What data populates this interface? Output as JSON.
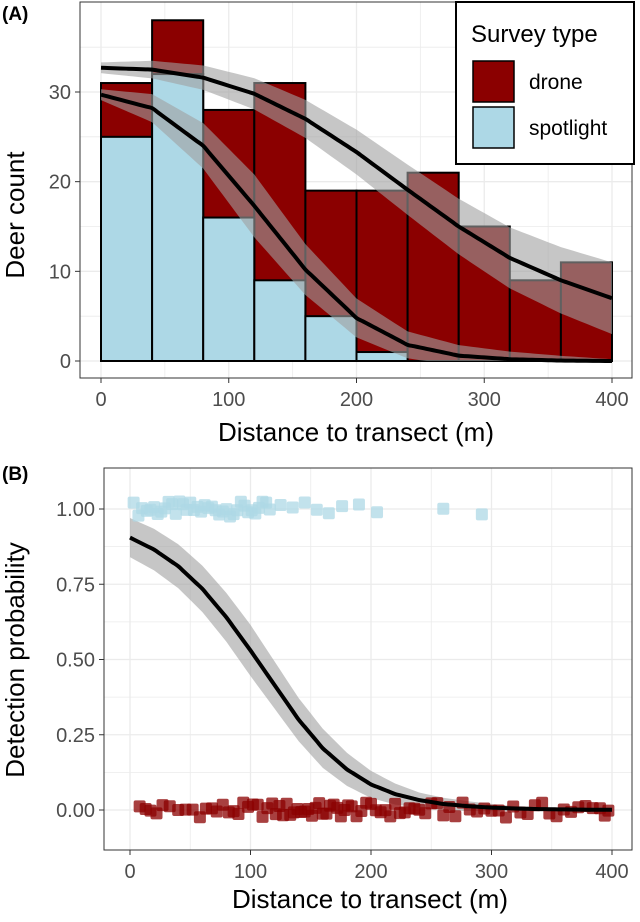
{
  "chart_data": [
    {
      "panel_label": "(A)",
      "type": "bar",
      "subtype": "overlaid histogram with fitted curves",
      "xlabel": "Distance to transect (m)",
      "ylabel": "Deer count",
      "xlim": [
        0,
        400
      ],
      "ylim": [
        0,
        38
      ],
      "xticks": [
        "0",
        "100",
        "200",
        "300",
        "400"
      ],
      "yticks": [
        "0",
        "10",
        "20",
        "30"
      ],
      "bin_edges": [
        0,
        40,
        80,
        120,
        160,
        200,
        240,
        280,
        320,
        360,
        400
      ],
      "legend": {
        "title": "Survey type",
        "position": "top-right",
        "entries": [
          "drone",
          "spotlight"
        ]
      },
      "series": [
        {
          "name": "drone",
          "color": "#8b0000",
          "values": [
            31,
            38,
            28,
            31,
            19,
            19,
            21,
            15,
            9,
            11
          ],
          "tops_visible_above_spotlight": [
            true,
            true,
            true,
            true,
            true,
            true,
            false,
            false,
            false,
            false
          ]
        },
        {
          "name": "spotlight",
          "color": "#add8e6",
          "values": [
            25,
            32,
            16,
            9,
            5,
            1,
            0,
            0,
            0,
            0
          ]
        }
      ],
      "fits": [
        {
          "series": "drone",
          "points": [
            [
              0,
              32.7
            ],
            [
              40,
              32.5
            ],
            [
              80,
              31.6
            ],
            [
              120,
              29.8
            ],
            [
              160,
              27
            ],
            [
              200,
              23.3
            ],
            [
              240,
              19.1
            ],
            [
              280,
              15
            ],
            [
              320,
              11.5
            ],
            [
              360,
              9
            ],
            [
              400,
              7
            ]
          ],
          "band_half_width": [
            [
              0,
              0.6
            ],
            [
              200,
              2.5
            ],
            [
              400,
              4
            ]
          ]
        },
        {
          "series": "spotlight",
          "points": [
            [
              0,
              29.7
            ],
            [
              40,
              28.2
            ],
            [
              80,
              24
            ],
            [
              120,
              17.3
            ],
            [
              160,
              10.2
            ],
            [
              200,
              4.8
            ],
            [
              240,
              1.8
            ],
            [
              280,
              0.6
            ],
            [
              320,
              0.2
            ],
            [
              360,
              0.05
            ],
            [
              400,
              0
            ]
          ],
          "band_half_width": [
            [
              0,
              0.6
            ],
            [
              120,
              3.5
            ],
            [
              240,
              1.5
            ],
            [
              400,
              0.2
            ]
          ]
        }
      ],
      "grid": true
    },
    {
      "panel_label": "(B)",
      "type": "scatter",
      "subtype": "logistic regression with confidence band",
      "xlabel": "Distance to transect (m)",
      "ylabel": "Detection probability",
      "xlim": [
        0,
        400
      ],
      "ylim": [
        0,
        1
      ],
      "xticks": [
        "0",
        "100",
        "200",
        "300",
        "400"
      ],
      "yticks": [
        "0.00",
        "0.25",
        "0.50",
        "0.75",
        "1.00"
      ],
      "grid": true,
      "series": [
        {
          "name": "spotlight",
          "color": "#add8e6",
          "y": 1,
          "x": [
            3,
            7,
            10,
            14,
            17,
            20,
            23,
            26,
            29,
            32,
            35,
            38,
            41,
            44,
            47,
            50,
            53,
            56,
            59,
            62,
            65,
            68,
            71,
            74,
            77,
            80,
            83,
            86,
            89,
            92,
            95,
            98,
            101,
            104,
            107,
            110,
            113,
            116,
            125,
            135,
            145,
            155,
            165,
            176,
            190,
            205,
            260,
            292
          ]
        },
        {
          "name": "drone",
          "color": "#8b0000",
          "y": 0,
          "x": [
            8,
            13,
            17,
            22,
            27,
            33,
            40,
            46,
            52,
            58,
            63,
            68,
            72,
            77,
            82,
            86,
            90,
            94,
            98,
            102,
            106,
            110,
            114,
            118,
            121,
            124,
            127,
            130,
            133,
            136,
            139,
            142,
            145,
            148,
            151,
            154,
            157,
            160,
            163,
            166,
            169,
            172,
            175,
            178,
            181,
            184,
            188,
            192,
            196,
            200,
            204,
            208,
            212,
            216,
            220,
            224,
            228,
            232,
            236,
            240,
            245,
            250,
            255,
            260,
            265,
            270,
            276,
            282,
            288,
            294,
            300,
            306,
            312,
            318,
            324,
            330,
            336,
            342,
            348,
            354,
            360,
            366,
            372,
            378,
            384,
            390,
            394,
            397
          ]
        }
      ],
      "fit": {
        "points": [
          [
            0,
            0.905
          ],
          [
            20,
            0.865
          ],
          [
            40,
            0.81
          ],
          [
            60,
            0.735
          ],
          [
            80,
            0.64
          ],
          [
            100,
            0.53
          ],
          [
            120,
            0.415
          ],
          [
            140,
            0.3
          ],
          [
            160,
            0.205
          ],
          [
            180,
            0.135
          ],
          [
            200,
            0.085
          ],
          [
            220,
            0.053
          ],
          [
            240,
            0.033
          ],
          [
            260,
            0.02
          ],
          [
            280,
            0.013
          ],
          [
            300,
            0.008
          ],
          [
            320,
            0.005
          ],
          [
            340,
            0.003
          ],
          [
            360,
            0.002
          ],
          [
            380,
            0.001
          ],
          [
            400,
            0.001
          ]
        ],
        "band_half_width": [
          [
            0,
            0.065
          ],
          [
            100,
            0.085
          ],
          [
            160,
            0.065
          ],
          [
            240,
            0.025
          ],
          [
            320,
            0.008
          ],
          [
            400,
            0.003
          ]
        ]
      }
    }
  ]
}
